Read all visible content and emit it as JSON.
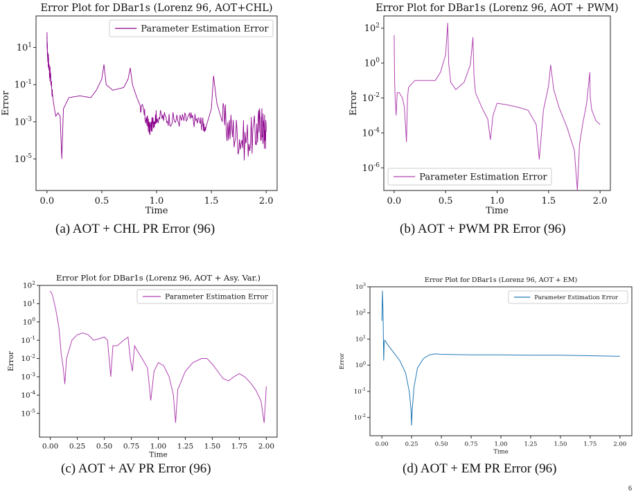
{
  "page_number": "6",
  "chart_data": [
    {
      "id": "a",
      "type": "line",
      "title": "Error Plot for DBar1s (Lorenz 96, AOT+CHL)",
      "xlabel": "Time",
      "ylabel": "Error",
      "yscale": "log",
      "xlim": [
        -0.1,
        2.1
      ],
      "ylim": [
        2e-07,
        500
      ],
      "xticks": [
        0,
        0.5,
        1,
        1.5,
        2
      ],
      "xtick_labels": [
        "0.0",
        "0.5",
        "1.0",
        "1.5",
        "2.0"
      ],
      "yticks": [
        1e-05,
        0.001,
        0.1,
        10
      ],
      "ytick_labels": [
        "10^-5",
        "10^-3",
        "10^-1",
        "10^1"
      ],
      "legend_placement": "top-right",
      "caption": "(a) AOT + CHL PR Error (96)",
      "series": [
        {
          "name": "Parameter Estimation Error",
          "color": "#8b008b",
          "noisy": true,
          "x": [
            0.0,
            0.005,
            0.02,
            0.04,
            0.06,
            0.08,
            0.1,
            0.12,
            0.135,
            0.15,
            0.2,
            0.3,
            0.4,
            0.45,
            0.5,
            0.52,
            0.54,
            0.6,
            0.7,
            0.74,
            0.76,
            0.78,
            0.82,
            0.88,
            0.92,
            0.94,
            0.97,
            1.0,
            1.1,
            1.2,
            1.3,
            1.4,
            1.45,
            1.5,
            1.52,
            1.55,
            1.6,
            1.7,
            1.8,
            1.9,
            1.95,
            1.98,
            2.0
          ],
          "y": [
            30,
            5,
            0.8,
            0.1,
            0.01,
            0.002,
            0.003,
            0.002,
            1e-05,
            0.005,
            0.02,
            0.025,
            0.02,
            0.05,
            0.2,
            1.2,
            0.1,
            0.05,
            0.07,
            0.2,
            0.8,
            0.1,
            0.02,
            0.003,
            0.0008,
            0.0004,
            0.001,
            0.002,
            0.0015,
            0.0012,
            0.0015,
            0.001,
            0.0005,
            0.005,
            0.3,
            0.01,
            0.001,
            0.0003,
            0.0001,
            0.0002,
            0.001,
            0.0003,
            0.0003
          ]
        }
      ]
    },
    {
      "id": "b",
      "type": "line",
      "title": "Error Plot for DBar1s (Lorenz 96, AOT + PWM)",
      "xlabel": "Time",
      "ylabel": "Error",
      "yscale": "log",
      "xlim": [
        -0.1,
        2.1
      ],
      "ylim": [
        5e-08,
        500
      ],
      "xticks": [
        0,
        0.5,
        1,
        1.5,
        2
      ],
      "xtick_labels": [
        "0.0",
        "0.5",
        "1.0",
        "1.5",
        "2.0"
      ],
      "yticks": [
        1e-06,
        0.0001,
        0.01,
        1,
        100
      ],
      "ytick_labels": [
        "10^-6",
        "10^-4",
        "10^-2",
        "10^0",
        "10^2"
      ],
      "legend_placement": "bottom-left",
      "caption": "(b) AOT + PWM PR Error (96)",
      "series": [
        {
          "name": "Parameter Estimation Error",
          "color": "#b041b0",
          "x": [
            0.0,
            0.005,
            0.01,
            0.02,
            0.03,
            0.05,
            0.08,
            0.1,
            0.12,
            0.13,
            0.14,
            0.2,
            0.3,
            0.4,
            0.45,
            0.5,
            0.52,
            0.53,
            0.55,
            0.6,
            0.68,
            0.74,
            0.765,
            0.775,
            0.79,
            0.85,
            0.91,
            0.935,
            0.96,
            1.0,
            1.1,
            1.2,
            1.3,
            1.38,
            1.41,
            1.45,
            1.5,
            1.52,
            1.55,
            1.6,
            1.68,
            1.75,
            1.78,
            1.8,
            1.83,
            1.87,
            1.9,
            1.905,
            1.92,
            1.96,
            2.0
          ],
          "y": [
            40,
            0.1,
            0.01,
            0.001,
            0.02,
            0.02,
            0.01,
            0.003,
            3e-05,
            0.01,
            0.04,
            0.1,
            0.1,
            0.1,
            0.3,
            3,
            200,
            1,
            0.08,
            0.03,
            0.08,
            0.8,
            30,
            0.2,
            0.02,
            0.003,
            0.0006,
            4e-05,
            0.001,
            0.005,
            0.004,
            0.003,
            0.002,
            0.0003,
            3e-06,
            0.002,
            0.05,
            0.8,
            0.03,
            0.003,
            0.0002,
            1e-05,
            5e-08,
            2e-05,
            0.0003,
            0.005,
            0.3,
            0.01,
            0.002,
            0.0005,
            0.0003
          ]
        }
      ]
    },
    {
      "id": "c",
      "type": "line",
      "title": "Error Plot for DBar1s (Lorenz 96, AOT + Asy. Var.)",
      "xlabel": "Time",
      "ylabel": "Error",
      "yscale": "log",
      "xlim": [
        -0.1,
        2.1
      ],
      "ylim": [
        5e-07,
        100
      ],
      "xticks": [
        0,
        0.25,
        0.5,
        0.75,
        1,
        1.25,
        1.5,
        1.75,
        2
      ],
      "xtick_labels": [
        "0.00",
        "0.25",
        "0.50",
        "0.75",
        "1.00",
        "1.25",
        "1.50",
        "1.75",
        "2.00"
      ],
      "yticks": [
        1e-05,
        0.0001,
        0.001,
        0.01,
        0.1,
        1,
        10,
        100
      ],
      "ytick_labels": [
        "10^-5",
        "10^-4",
        "10^-3",
        "10^-2",
        "10^-1",
        "10^0",
        "10^1",
        "10^2"
      ],
      "legend_placement": "top-right",
      "caption": "(c) AOT + AV PR Error (96)",
      "series": [
        {
          "name": "Parameter Estimation Error",
          "color": "#b041b0",
          "x": [
            0.0,
            0.02,
            0.05,
            0.08,
            0.1,
            0.12,
            0.135,
            0.15,
            0.2,
            0.25,
            0.3,
            0.35,
            0.4,
            0.45,
            0.5,
            0.53,
            0.56,
            0.58,
            0.62,
            0.68,
            0.72,
            0.74,
            0.76,
            0.78,
            0.8,
            0.85,
            0.9,
            0.93,
            0.96,
            1.0,
            1.05,
            1.1,
            1.14,
            1.16,
            1.18,
            1.25,
            1.32,
            1.4,
            1.45,
            1.5,
            1.55,
            1.6,
            1.65,
            1.7,
            1.75,
            1.8,
            1.85,
            1.9,
            1.95,
            1.98,
            2.0
          ],
          "y": [
            50,
            30,
            5,
            0.5,
            0.02,
            0.003,
            0.0004,
            0.01,
            0.1,
            0.2,
            0.25,
            0.2,
            0.1,
            0.12,
            0.15,
            0.1,
            0.001,
            0.05,
            0.05,
            0.1,
            0.15,
            0.01,
            0.002,
            0.05,
            0.03,
            0.01,
            0.003,
            5e-05,
            0.002,
            0.006,
            0.004,
            0.001,
            0.0001,
            3e-06,
            0.0002,
            0.002,
            0.006,
            0.01,
            0.01,
            0.005,
            0.002,
            0.0008,
            0.0006,
            0.001,
            0.0015,
            0.001,
            0.0005,
            0.0002,
            5e-05,
            3e-06,
            0.0003
          ]
        }
      ]
    },
    {
      "id": "d",
      "type": "line",
      "title": "Error Plot for DBar1s (Lorenz 96, AOT + EM)",
      "xlabel": "Time",
      "ylabel": "Error",
      "yscale": "log",
      "xlim": [
        -0.1,
        2.1
      ],
      "ylim": [
        0.002,
        1000
      ],
      "xticks": [
        0,
        0.25,
        0.5,
        0.75,
        1,
        1.25,
        1.5,
        1.75,
        2
      ],
      "xtick_labels": [
        "0.00",
        "0.25",
        "0.50",
        "0.75",
        "1.00",
        "1.25",
        "1.50",
        "1.75",
        "2.00"
      ],
      "yticks": [
        0.01,
        0.1,
        1,
        10,
        100,
        1000
      ],
      "ytick_labels": [
        "10^-2",
        "10^-1",
        "10^0",
        "10^1",
        "10^2",
        "10^3"
      ],
      "legend_placement": "top-right",
      "caption": "(d) AOT + EM PR Error (96)",
      "series": [
        {
          "name": "Parameter Estimation Error",
          "color": "#1f77b4",
          "x": [
            0.0,
            0.005,
            0.01,
            0.015,
            0.02,
            0.025,
            0.05,
            0.1,
            0.15,
            0.2,
            0.23,
            0.245,
            0.25,
            0.255,
            0.27,
            0.3,
            0.35,
            0.4,
            0.45,
            0.5,
            0.75,
            1.0,
            1.25,
            1.5,
            1.75,
            2.0
          ],
          "y": [
            50,
            700,
            100,
            1.5,
            8,
            9,
            6,
            3,
            1.5,
            0.5,
            0.1,
            0.02,
            0.005,
            0.02,
            0.15,
            0.8,
            1.8,
            2.5,
            2.7,
            2.6,
            2.5,
            2.5,
            2.4,
            2.4,
            2.3,
            2.2
          ]
        }
      ]
    }
  ]
}
